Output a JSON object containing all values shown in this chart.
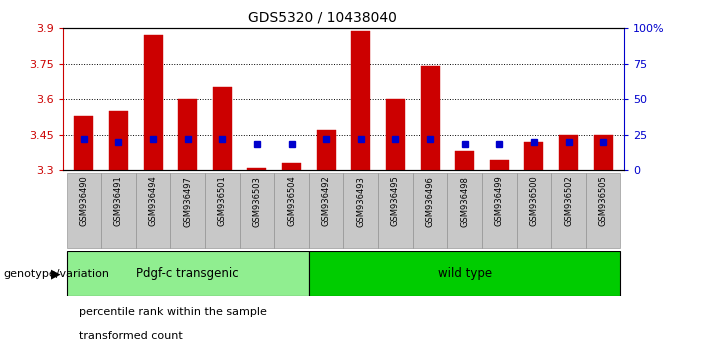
{
  "title": "GDS5320 / 10438040",
  "samples": [
    "GSM936490",
    "GSM936491",
    "GSM936494",
    "GSM936497",
    "GSM936501",
    "GSM936503",
    "GSM936504",
    "GSM936492",
    "GSM936493",
    "GSM936495",
    "GSM936496",
    "GSM936498",
    "GSM936499",
    "GSM936500",
    "GSM936502",
    "GSM936505"
  ],
  "red_values": [
    3.53,
    3.55,
    3.87,
    3.6,
    3.65,
    3.31,
    3.33,
    3.47,
    3.89,
    3.6,
    3.74,
    3.38,
    3.34,
    3.42,
    3.45,
    3.45
  ],
  "blue_values": [
    22,
    20,
    22,
    22,
    22,
    18,
    18,
    22,
    22,
    22,
    22,
    18,
    18,
    20,
    20,
    20
  ],
  "ymin": 3.3,
  "ymax": 3.9,
  "y2min": 0,
  "y2max": 100,
  "yticks": [
    3.3,
    3.45,
    3.6,
    3.75,
    3.9
  ],
  "y2ticks": [
    0,
    25,
    50,
    75,
    100
  ],
  "groups": [
    {
      "label": "Pdgf-c transgenic",
      "start": 0,
      "end": 7,
      "color": "#90EE90"
    },
    {
      "label": "wild type",
      "start": 7,
      "end": 16,
      "color": "#00CC00"
    }
  ],
  "group_label": "genotype/variation",
  "legend_red": "transformed count",
  "legend_blue": "percentile rank within the sample",
  "bar_color": "#CC0000",
  "blue_color": "#0000CC",
  "bg_color": "#C8C8C8",
  "plot_bg": "#FFFFFF"
}
